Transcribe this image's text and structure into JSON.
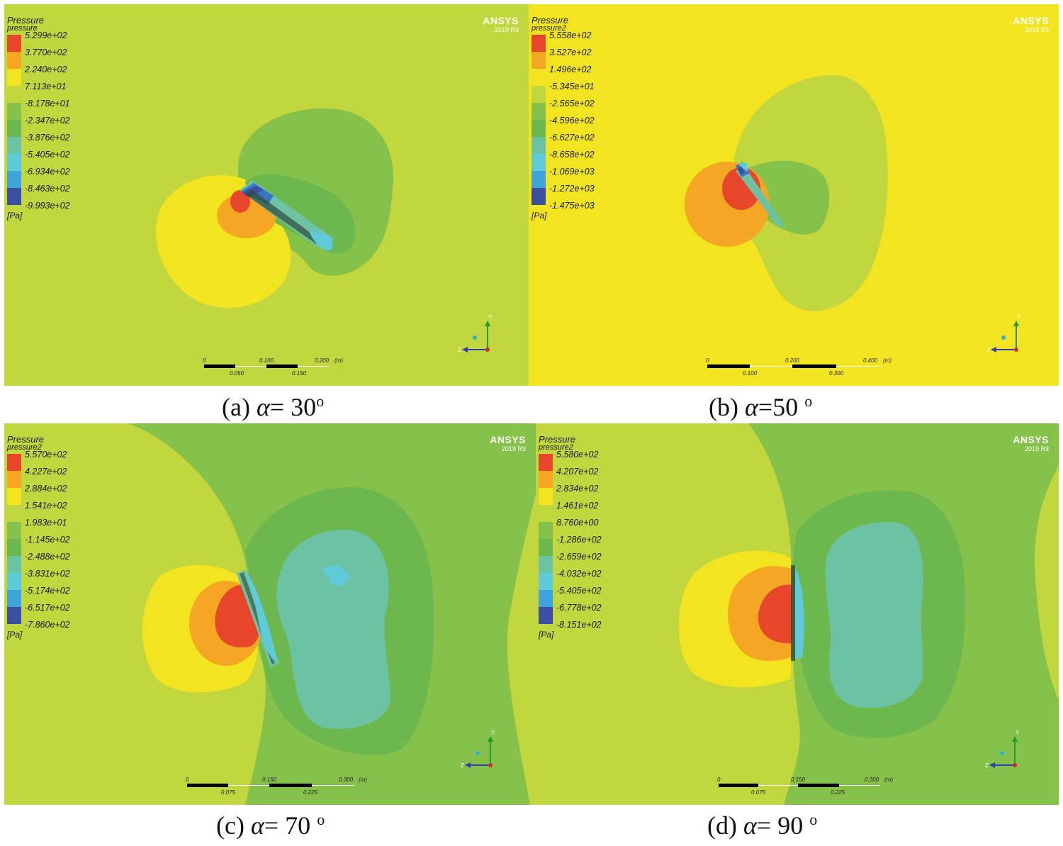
{
  "panels": [
    {
      "id": "a",
      "legend_title": "Pressure",
      "legend_variable": "pressure",
      "legend_values": [
        "5.299e+02",
        "3.770e+02",
        "2.240e+02",
        "7.113e+01",
        "-8.178e+01",
        "-2.347e+02",
        "-3.876e+02",
        "-5.405e+02",
        "-6.934e+02",
        "-8.463e+02",
        "-9.993e+02"
      ],
      "legend_unit": "[Pa]",
      "brand": "ANSYS",
      "version": "2019 R3",
      "scale_top": [
        "0",
        "0.100",
        "0.200"
      ],
      "scale_unit": "(m)",
      "scale_bottom": [
        "0.050",
        "0.150"
      ],
      "caption_label": "(a)",
      "caption_symbol": "α",
      "caption_value": "= 30",
      "caption_degree": "o"
    },
    {
      "id": "b",
      "legend_title": "Pressure",
      "legend_variable": "pressure2",
      "legend_values": [
        "5.558e+02",
        "3.527e+02",
        "1.496e+02",
        "-5.345e+01",
        "-2.565e+02",
        "-4.596e+02",
        "-6.627e+02",
        "-8.658e+02",
        "-1.069e+03",
        "-1.272e+03",
        "-1.475e+03"
      ],
      "legend_unit": "[Pa]",
      "brand": "ANSYS",
      "version": "2019 R3",
      "scale_top": [
        "0",
        "0.200",
        "0.400"
      ],
      "scale_unit": "(m)",
      "scale_bottom": [
        "0.100",
        "0.300"
      ],
      "caption_label": "(b)",
      "caption_symbol": "α",
      "caption_value": "=50 ",
      "caption_degree": "o"
    },
    {
      "id": "c",
      "legend_title": "Pressure",
      "legend_variable": "pressure2",
      "legend_values": [
        "5.570e+02",
        "4.227e+02",
        "2.884e+02",
        "1.541e+02",
        "1.983e+01",
        "-1.145e+02",
        "-2.488e+02",
        "-3.831e+02",
        "-5.174e+02",
        "-6.517e+02",
        "-7.860e+02"
      ],
      "legend_unit": "[Pa]",
      "brand": "ANSYS",
      "version": "2019 R3",
      "scale_top": [
        "0",
        "0.150",
        "0.300"
      ],
      "scale_unit": "(m)",
      "scale_bottom": [
        "0.075",
        "0.225"
      ],
      "caption_label": "(c)",
      "caption_symbol": "α",
      "caption_value": "= 70 ",
      "caption_degree": "o"
    },
    {
      "id": "d",
      "legend_title": "Pressure",
      "legend_variable": "pressure2",
      "legend_values": [
        "5.580e+02",
        "4.207e+02",
        "2.834e+02",
        "1.461e+02",
        "8.760e+00",
        "-1.286e+02",
        "-2.659e+02",
        "-4.032e+02",
        "-5.405e+02",
        "-6.778e+02",
        "-8.151e+02"
      ],
      "legend_unit": "[Pa]",
      "brand": "ANSYS",
      "version": "2019 R3",
      "scale_top": [
        "0",
        "0.150",
        "0.300"
      ],
      "scale_unit": "(m)",
      "scale_bottom": [
        "0.075",
        "0.225"
      ],
      "caption_label": "(d)",
      "caption_symbol": "α",
      "caption_value": "= 90 ",
      "caption_degree": "o"
    }
  ],
  "colors": {
    "bands": [
      "#e8462a",
      "#f5a623",
      "#f2e51f",
      "#c2d63d",
      "#86c14a",
      "#6cb84f",
      "#6cc3a3",
      "#5fcad8",
      "#3fa3dc",
      "#3a75c4",
      "#3b4fa2"
    ],
    "background_a": "#c2d63d",
    "background_b": "#f2e51f",
    "background_c": "#86c14a",
    "background_d": "#86c14a"
  },
  "axis_labels": {
    "y": "Y",
    "z": "Z"
  }
}
